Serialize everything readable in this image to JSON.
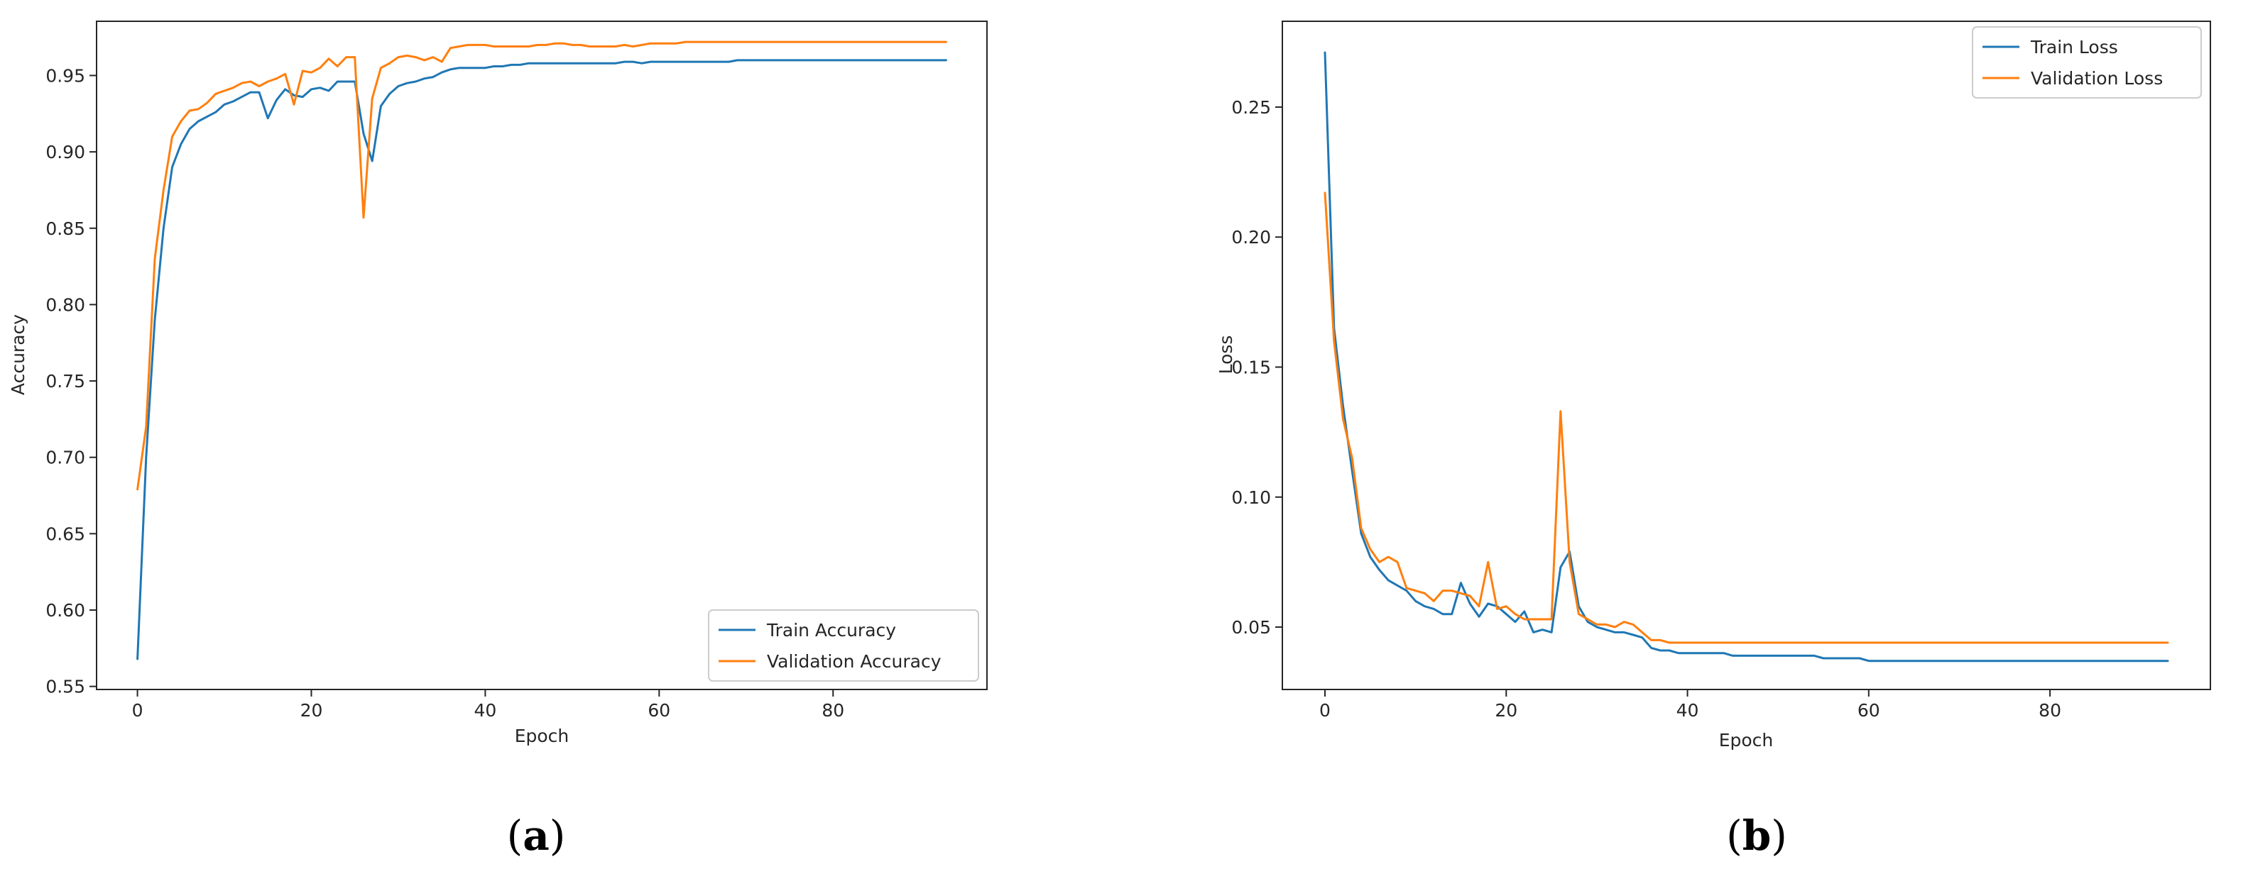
{
  "panels": [
    {
      "open": "(",
      "letter": "a",
      "close": ")"
    },
    {
      "open": "(",
      "letter": "b",
      "close": ")"
    }
  ],
  "chart_data": [
    {
      "type": "line",
      "title": "",
      "xlabel": "Epoch",
      "ylabel": "Accuracy",
      "xlim": [
        -4.7,
        97.7
      ],
      "ylim": [
        0.548,
        0.9855
      ],
      "xticks": [
        0,
        20,
        40,
        60,
        80
      ],
      "yticks": [
        0.55,
        0.6,
        0.65,
        0.7,
        0.75,
        0.8,
        0.85,
        0.9,
        0.95
      ],
      "ytick_labels": [
        "0.55",
        "0.60",
        "0.65",
        "0.70",
        "0.75",
        "0.80",
        "0.85",
        "0.90",
        "0.95"
      ],
      "grid": false,
      "legend_position": "lower-right",
      "colors": {
        "train": "#1f77b4",
        "validation": "#ff7f0e"
      },
      "x": [
        0,
        1,
        2,
        3,
        4,
        5,
        6,
        7,
        8,
        9,
        10,
        11,
        12,
        13,
        14,
        15,
        16,
        17,
        18,
        19,
        20,
        21,
        22,
        23,
        24,
        25,
        26,
        27,
        28,
        29,
        30,
        31,
        32,
        33,
        34,
        35,
        36,
        37,
        38,
        39,
        40,
        41,
        42,
        43,
        44,
        45,
        46,
        47,
        48,
        49,
        50,
        51,
        52,
        53,
        54,
        55,
        56,
        57,
        58,
        59,
        60,
        61,
        62,
        63,
        64,
        65,
        66,
        67,
        68,
        69,
        70,
        71,
        72,
        73,
        74,
        75,
        76,
        77,
        78,
        79,
        80,
        81,
        82,
        83,
        84,
        85,
        86,
        87,
        88,
        89,
        90,
        91,
        92,
        93
      ],
      "series": [
        {
          "name": "Train Accuracy",
          "color": "#1f77b4",
          "values": [
            0.568,
            0.7,
            0.79,
            0.85,
            0.89,
            0.905,
            0.915,
            0.92,
            0.923,
            0.926,
            0.931,
            0.933,
            0.936,
            0.939,
            0.939,
            0.922,
            0.934,
            0.941,
            0.937,
            0.936,
            0.941,
            0.942,
            0.94,
            0.946,
            0.946,
            0.946,
            0.912,
            0.894,
            0.93,
            0.938,
            0.943,
            0.945,
            0.946,
            0.948,
            0.949,
            0.952,
            0.954,
            0.955,
            0.955,
            0.955,
            0.955,
            0.956,
            0.956,
            0.957,
            0.957,
            0.958,
            0.958,
            0.958,
            0.958,
            0.958,
            0.958,
            0.958,
            0.958,
            0.958,
            0.958,
            0.958,
            0.959,
            0.959,
            0.958,
            0.959,
            0.959,
            0.959,
            0.959,
            0.959,
            0.959,
            0.959,
            0.959,
            0.959,
            0.959,
            0.96,
            0.96,
            0.96,
            0.96,
            0.96,
            0.96,
            0.96,
            0.96,
            0.96,
            0.96,
            0.96,
            0.96,
            0.96,
            0.96,
            0.96,
            0.96,
            0.96,
            0.96,
            0.96,
            0.96,
            0.96,
            0.96,
            0.96,
            0.96,
            0.96
          ]
        },
        {
          "name": "Validation Accuracy",
          "color": "#ff7f0e",
          "values": [
            0.679,
            0.72,
            0.83,
            0.875,
            0.91,
            0.92,
            0.927,
            0.928,
            0.932,
            0.938,
            0.94,
            0.942,
            0.945,
            0.946,
            0.943,
            0.946,
            0.948,
            0.951,
            0.931,
            0.953,
            0.952,
            0.955,
            0.961,
            0.956,
            0.962,
            0.962,
            0.857,
            0.935,
            0.955,
            0.958,
            0.962,
            0.963,
            0.962,
            0.96,
            0.962,
            0.959,
            0.968,
            0.969,
            0.97,
            0.97,
            0.97,
            0.969,
            0.969,
            0.969,
            0.969,
            0.969,
            0.97,
            0.97,
            0.971,
            0.971,
            0.97,
            0.97,
            0.969,
            0.969,
            0.969,
            0.969,
            0.97,
            0.969,
            0.97,
            0.971,
            0.971,
            0.971,
            0.971,
            0.972,
            0.972,
            0.972,
            0.972,
            0.972,
            0.972,
            0.972,
            0.972,
            0.972,
            0.972,
            0.972,
            0.972,
            0.972,
            0.972,
            0.972,
            0.972,
            0.972,
            0.972,
            0.972,
            0.972,
            0.972,
            0.972,
            0.972,
            0.972,
            0.972,
            0.972,
            0.972,
            0.972,
            0.972,
            0.972,
            0.972
          ]
        }
      ]
    },
    {
      "type": "line",
      "title": "",
      "xlabel": "Epoch",
      "ylabel": "Loss",
      "xlim": [
        -4.7,
        97.7
      ],
      "ylim": [
        0.026,
        0.283
      ],
      "xticks": [
        0,
        20,
        40,
        60,
        80
      ],
      "yticks": [
        0.05,
        0.1,
        0.15,
        0.2,
        0.25
      ],
      "ytick_labels": [
        "0.05",
        "0.10",
        "0.15",
        "0.20",
        "0.25"
      ],
      "grid": false,
      "legend_position": "top-right",
      "colors": {
        "train": "#1f77b4",
        "validation": "#ff7f0e"
      },
      "x": [
        0,
        1,
        2,
        3,
        4,
        5,
        6,
        7,
        8,
        9,
        10,
        11,
        12,
        13,
        14,
        15,
        16,
        17,
        18,
        19,
        20,
        21,
        22,
        23,
        24,
        25,
        26,
        27,
        28,
        29,
        30,
        31,
        32,
        33,
        34,
        35,
        36,
        37,
        38,
        39,
        40,
        41,
        42,
        43,
        44,
        45,
        46,
        47,
        48,
        49,
        50,
        51,
        52,
        53,
        54,
        55,
        56,
        57,
        58,
        59,
        60,
        61,
        62,
        63,
        64,
        65,
        66,
        67,
        68,
        69,
        70,
        71,
        72,
        73,
        74,
        75,
        76,
        77,
        78,
        79,
        80,
        81,
        82,
        83,
        84,
        85,
        86,
        87,
        88,
        89,
        90,
        91,
        92,
        93
      ],
      "series": [
        {
          "name": "Train Loss",
          "color": "#1f77b4",
          "values": [
            0.271,
            0.165,
            0.135,
            0.11,
            0.086,
            0.077,
            0.072,
            0.068,
            0.066,
            0.064,
            0.06,
            0.058,
            0.057,
            0.055,
            0.055,
            0.067,
            0.059,
            0.054,
            0.059,
            0.058,
            0.055,
            0.052,
            0.056,
            0.048,
            0.049,
            0.048,
            0.073,
            0.079,
            0.058,
            0.052,
            0.05,
            0.049,
            0.048,
            0.048,
            0.047,
            0.046,
            0.042,
            0.041,
            0.041,
            0.04,
            0.04,
            0.04,
            0.04,
            0.04,
            0.04,
            0.039,
            0.039,
            0.039,
            0.039,
            0.039,
            0.039,
            0.039,
            0.039,
            0.039,
            0.039,
            0.038,
            0.038,
            0.038,
            0.038,
            0.038,
            0.037,
            0.037,
            0.037,
            0.037,
            0.037,
            0.037,
            0.037,
            0.037,
            0.037,
            0.037,
            0.037,
            0.037,
            0.037,
            0.037,
            0.037,
            0.037,
            0.037,
            0.037,
            0.037,
            0.037,
            0.037,
            0.037,
            0.037,
            0.037,
            0.037,
            0.037,
            0.037,
            0.037,
            0.037,
            0.037,
            0.037,
            0.037,
            0.037,
            0.037
          ]
        },
        {
          "name": "Validation Loss",
          "color": "#ff7f0e",
          "values": [
            0.217,
            0.16,
            0.13,
            0.115,
            0.088,
            0.08,
            0.075,
            0.077,
            0.075,
            0.065,
            0.064,
            0.063,
            0.06,
            0.064,
            0.064,
            0.063,
            0.062,
            0.058,
            0.075,
            0.057,
            0.058,
            0.055,
            0.053,
            0.053,
            0.053,
            0.053,
            0.133,
            0.075,
            0.055,
            0.053,
            0.051,
            0.051,
            0.05,
            0.052,
            0.051,
            0.048,
            0.045,
            0.045,
            0.044,
            0.044,
            0.044,
            0.044,
            0.044,
            0.044,
            0.044,
            0.044,
            0.044,
            0.044,
            0.044,
            0.044,
            0.044,
            0.044,
            0.044,
            0.044,
            0.044,
            0.044,
            0.044,
            0.044,
            0.044,
            0.044,
            0.044,
            0.044,
            0.044,
            0.044,
            0.044,
            0.044,
            0.044,
            0.044,
            0.044,
            0.044,
            0.044,
            0.044,
            0.044,
            0.044,
            0.044,
            0.044,
            0.044,
            0.044,
            0.044,
            0.044,
            0.044,
            0.044,
            0.044,
            0.044,
            0.044,
            0.044,
            0.044,
            0.044,
            0.044,
            0.044,
            0.044,
            0.044,
            0.044,
            0.044
          ]
        }
      ]
    }
  ]
}
